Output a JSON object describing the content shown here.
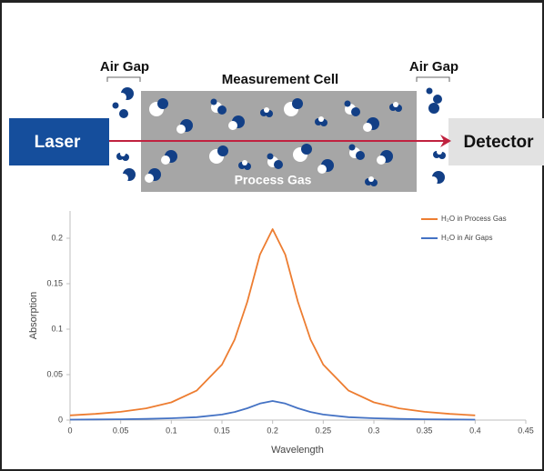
{
  "labels": {
    "air_gap_left": "Air Gap",
    "measurement_cell": "Measurement Cell",
    "air_gap_right": "Air Gap",
    "laser": "Laser",
    "detector": "Detector",
    "process_gas": "Process Gas"
  },
  "chart_data": {
    "type": "line",
    "x_label": "Wavelength",
    "y_label": "Absorption",
    "x": [
      0,
      0.025,
      0.05,
      0.075,
      0.1,
      0.125,
      0.15,
      0.1625,
      0.175,
      0.1875,
      0.2,
      0.2125,
      0.225,
      0.2375,
      0.25,
      0.275,
      0.3,
      0.325,
      0.35,
      0.375,
      0.4
    ],
    "series": [
      {
        "name": "H₂O in Process Gas",
        "color": "#ed7d31",
        "values": [
          0.0052,
          0.0068,
          0.0091,
          0.0129,
          0.0195,
          0.0324,
          0.061,
          0.0885,
          0.13,
          0.182,
          0.21,
          0.182,
          0.13,
          0.0885,
          0.061,
          0.0324,
          0.0195,
          0.0129,
          0.0091,
          0.0068,
          0.0052
        ]
      },
      {
        "name": "H₂O in Air Gaps",
        "color": "#4472c4",
        "values": [
          0.0005,
          0.0007,
          0.0009,
          0.0013,
          0.002,
          0.0032,
          0.0061,
          0.0089,
          0.013,
          0.0182,
          0.021,
          0.0182,
          0.013,
          0.0089,
          0.0061,
          0.0032,
          0.002,
          0.0013,
          0.0009,
          0.0007,
          0.0005
        ]
      }
    ],
    "xlim": [
      0,
      0.45
    ],
    "xticks": [
      0,
      0.05,
      0.1,
      0.15,
      0.2,
      0.25,
      0.3,
      0.35,
      0.4,
      0.45
    ],
    "ylim": [
      0,
      0.23
    ],
    "yticks": [
      0,
      0.05,
      0.1,
      0.15,
      0.2
    ],
    "legend": "upper right"
  }
}
